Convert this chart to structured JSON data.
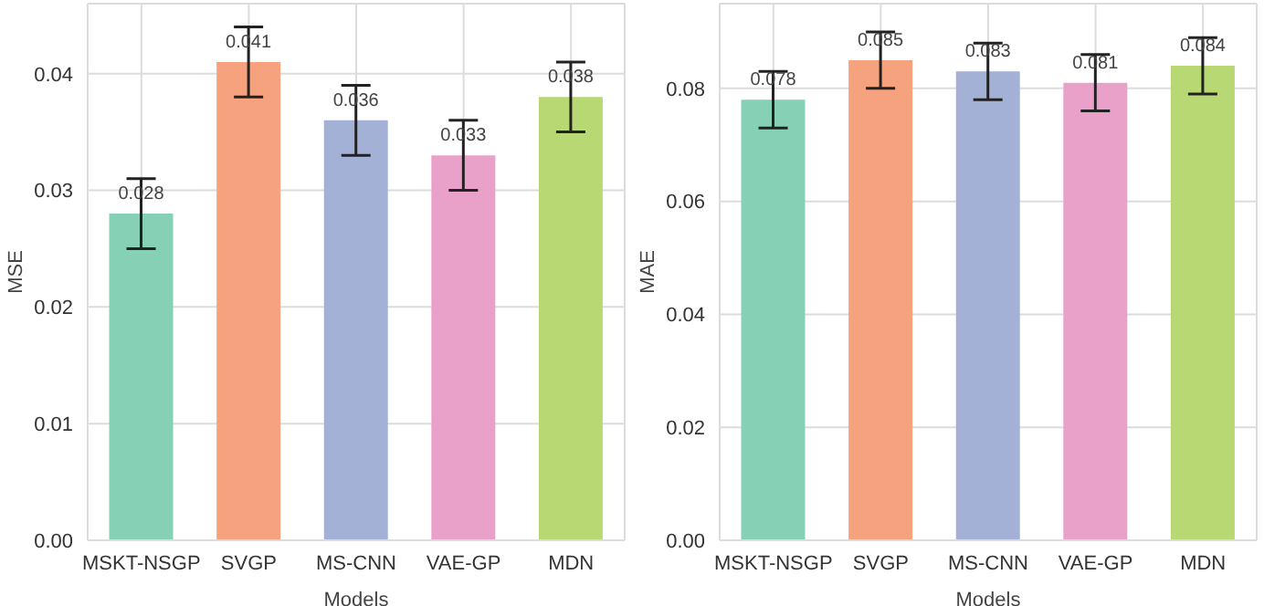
{
  "chart_data": [
    {
      "type": "bar",
      "xlabel": "Models",
      "ylabel": "MSE",
      "categories": [
        "MSKT-NSGP",
        "SVGP",
        "MS-CNN",
        "VAE-GP",
        "MDN"
      ],
      "values": [
        0.028,
        0.041,
        0.036,
        0.033,
        0.038
      ],
      "errors": [
        0.003,
        0.003,
        0.003,
        0.003,
        0.003
      ],
      "colors": [
        "#86d0b6",
        "#f7a27e",
        "#a3b1d6",
        "#eaa1c9",
        "#b8d874"
      ],
      "ylim": [
        0,
        0.046
      ],
      "yticks": [
        {
          "value": 0,
          "label": "0.00"
        },
        {
          "value": 0.01,
          "label": "0.01"
        },
        {
          "value": 0.02,
          "label": "0.02"
        },
        {
          "value": 0.03,
          "label": "0.03"
        },
        {
          "value": 0.04,
          "label": "0.04"
        }
      ],
      "data_labels": true,
      "grid": true
    },
    {
      "type": "bar",
      "xlabel": "Models",
      "ylabel": "MAE",
      "categories": [
        "MSKT-NSGP",
        "SVGP",
        "MS-CNN",
        "VAE-GP",
        "MDN"
      ],
      "values": [
        0.078,
        0.085,
        0.083,
        0.081,
        0.084
      ],
      "errors": [
        0.005,
        0.005,
        0.005,
        0.005,
        0.005
      ],
      "colors": [
        "#86d0b6",
        "#f7a27e",
        "#a3b1d6",
        "#eaa1c9",
        "#b8d874"
      ],
      "ylim": [
        0,
        0.095
      ],
      "yticks": [
        {
          "value": 0,
          "label": "0.00"
        },
        {
          "value": 0.02,
          "label": "0.02"
        },
        {
          "value": 0.04,
          "label": "0.04"
        },
        {
          "value": 0.06,
          "label": "0.06"
        },
        {
          "value": 0.08,
          "label": "0.08"
        }
      ],
      "data_labels": true,
      "grid": true
    }
  ]
}
